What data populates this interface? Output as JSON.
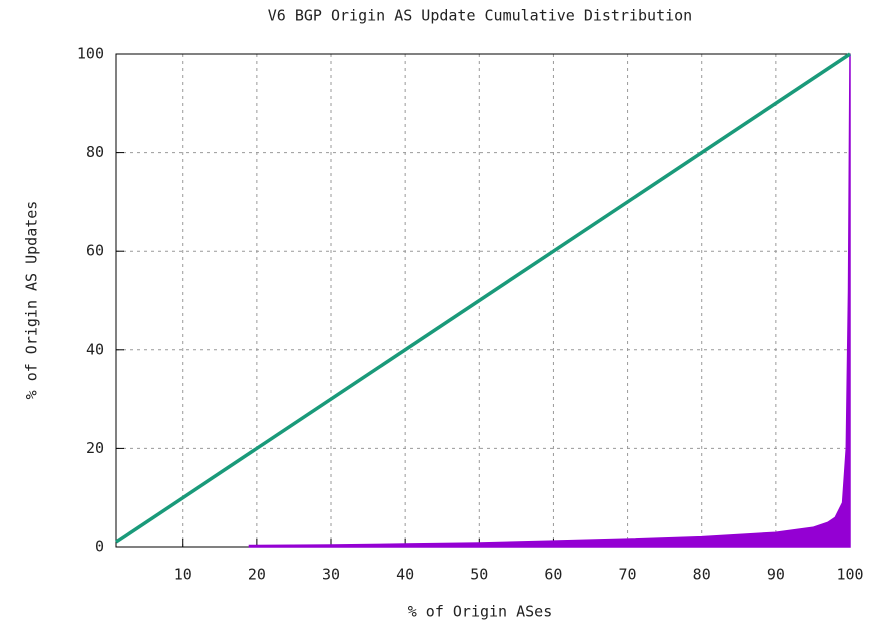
{
  "chart_data": {
    "type": "line",
    "title": "V6 BGP Origin AS Update Cumulative Distribution",
    "x_label": "% of Origin ASes",
    "y_label": "% of Origin AS Updates",
    "xlim": [
      1,
      100
    ],
    "xticks": [
      10,
      20,
      30,
      40,
      50,
      60,
      70,
      80,
      90,
      100
    ],
    "ylim": [
      0,
      100
    ],
    "yticks": [
      0,
      20,
      40,
      60,
      80,
      100
    ],
    "grid": true,
    "series": [
      {
        "style": "area",
        "color": "#9400d3",
        "x": [
          19,
          30,
          40,
          50,
          60,
          70,
          80,
          90,
          95,
          97,
          98,
          99,
          99.5,
          99.8,
          100
        ],
        "values": [
          0.3,
          0.4,
          0.6,
          0.8,
          1.2,
          1.6,
          2.1,
          3,
          4,
          5,
          6,
          9,
          20,
          52,
          100
        ]
      },
      {
        "style": "line",
        "color": "#1a9a7a",
        "x": [
          1,
          100
        ],
        "values": [
          1,
          100
        ]
      }
    ]
  }
}
